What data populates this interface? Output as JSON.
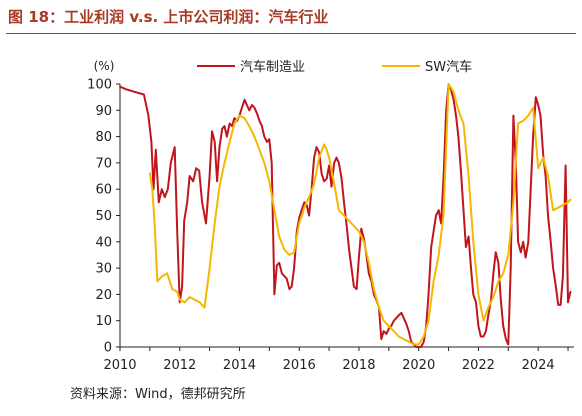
{
  "figure_title": "图 18：工业利润 v.s. 上市公司利润：汽车行业",
  "source_note": "资料来源：Wind，德邦研究所",
  "chart_data": {
    "type": "line",
    "ylabel": "(%)",
    "ylim": [
      0,
      100
    ],
    "yticks": [
      0,
      10,
      20,
      30,
      40,
      50,
      60,
      70,
      80,
      90,
      100
    ],
    "xlim": [
      2010,
      2025.2
    ],
    "xticks": [
      2010,
      2012,
      2014,
      2016,
      2018,
      2020,
      2022,
      2024
    ],
    "grid": false,
    "legend_position": "top",
    "series": [
      {
        "name": "汽车制造业",
        "color": "#c0151d",
        "points": [
          [
            2010.0,
            99
          ],
          [
            2010.2,
            98
          ],
          [
            2010.5,
            97
          ],
          [
            2010.8,
            96
          ],
          [
            2010.95,
            88
          ],
          [
            2011.05,
            78
          ],
          [
            2011.12,
            60
          ],
          [
            2011.2,
            75
          ],
          [
            2011.3,
            55
          ],
          [
            2011.4,
            60
          ],
          [
            2011.5,
            57
          ],
          [
            2011.6,
            60
          ],
          [
            2011.7,
            70
          ],
          [
            2011.83,
            76
          ],
          [
            2011.92,
            43
          ],
          [
            2012.0,
            17
          ],
          [
            2012.08,
            23
          ],
          [
            2012.15,
            48
          ],
          [
            2012.25,
            55
          ],
          [
            2012.33,
            65
          ],
          [
            2012.45,
            63
          ],
          [
            2012.55,
            68
          ],
          [
            2012.65,
            67
          ],
          [
            2012.75,
            55
          ],
          [
            2012.88,
            47
          ],
          [
            2013.0,
            65
          ],
          [
            2013.08,
            82
          ],
          [
            2013.17,
            78
          ],
          [
            2013.25,
            63
          ],
          [
            2013.33,
            76
          ],
          [
            2013.42,
            83
          ],
          [
            2013.5,
            84
          ],
          [
            2013.58,
            80
          ],
          [
            2013.67,
            85
          ],
          [
            2013.75,
            84
          ],
          [
            2013.83,
            87
          ],
          [
            2013.92,
            86
          ],
          [
            2014.0,
            88
          ],
          [
            2014.08,
            91
          ],
          [
            2014.17,
            94
          ],
          [
            2014.25,
            92
          ],
          [
            2014.33,
            90
          ],
          [
            2014.42,
            92
          ],
          [
            2014.5,
            91
          ],
          [
            2014.58,
            89
          ],
          [
            2014.67,
            86
          ],
          [
            2014.75,
            84
          ],
          [
            2014.83,
            80
          ],
          [
            2014.92,
            78
          ],
          [
            2015.0,
            79
          ],
          [
            2015.08,
            70
          ],
          [
            2015.17,
            20
          ],
          [
            2015.25,
            31
          ],
          [
            2015.33,
            32
          ],
          [
            2015.42,
            28
          ],
          [
            2015.5,
            27
          ],
          [
            2015.58,
            26
          ],
          [
            2015.67,
            22
          ],
          [
            2015.75,
            23
          ],
          [
            2015.83,
            30
          ],
          [
            2015.92,
            44
          ],
          [
            2016.0,
            49
          ],
          [
            2016.08,
            52
          ],
          [
            2016.17,
            55
          ],
          [
            2016.25,
            54
          ],
          [
            2016.33,
            50
          ],
          [
            2016.42,
            61
          ],
          [
            2016.5,
            72
          ],
          [
            2016.58,
            76
          ],
          [
            2016.67,
            74
          ],
          [
            2016.75,
            66
          ],
          [
            2016.83,
            63
          ],
          [
            2016.92,
            64
          ],
          [
            2017.0,
            69
          ],
          [
            2017.08,
            61
          ],
          [
            2017.17,
            70
          ],
          [
            2017.25,
            72
          ],
          [
            2017.33,
            70
          ],
          [
            2017.42,
            64
          ],
          [
            2017.5,
            55
          ],
          [
            2017.58,
            47
          ],
          [
            2017.67,
            37
          ],
          [
            2017.75,
            30
          ],
          [
            2017.83,
            23
          ],
          [
            2017.92,
            22
          ],
          [
            2018.0,
            34
          ],
          [
            2018.08,
            45
          ],
          [
            2018.17,
            41
          ],
          [
            2018.25,
            35
          ],
          [
            2018.33,
            28
          ],
          [
            2018.42,
            25
          ],
          [
            2018.5,
            20
          ],
          [
            2018.58,
            18
          ],
          [
            2018.67,
            15
          ],
          [
            2018.75,
            3
          ],
          [
            2018.83,
            6
          ],
          [
            2018.92,
            5
          ],
          [
            2019.0,
            7
          ],
          [
            2019.08,
            8
          ],
          [
            2019.17,
            10
          ],
          [
            2019.25,
            11
          ],
          [
            2019.33,
            12
          ],
          [
            2019.42,
            13
          ],
          [
            2019.5,
            11
          ],
          [
            2019.58,
            9
          ],
          [
            2019.67,
            6
          ],
          [
            2019.75,
            2
          ],
          [
            2019.83,
            1
          ],
          [
            2019.92,
            0
          ],
          [
            2020.0,
            0
          ],
          [
            2020.08,
            0
          ],
          [
            2020.17,
            2
          ],
          [
            2020.25,
            8
          ],
          [
            2020.33,
            20
          ],
          [
            2020.42,
            38
          ],
          [
            2020.5,
            44
          ],
          [
            2020.58,
            50
          ],
          [
            2020.67,
            52
          ],
          [
            2020.75,
            47
          ],
          [
            2020.83,
            64
          ],
          [
            2020.92,
            90
          ],
          [
            2021.0,
            100
          ],
          [
            2021.08,
            98
          ],
          [
            2021.17,
            94
          ],
          [
            2021.25,
            88
          ],
          [
            2021.33,
            80
          ],
          [
            2021.42,
            66
          ],
          [
            2021.5,
            52
          ],
          [
            2021.58,
            38
          ],
          [
            2021.67,
            42
          ],
          [
            2021.75,
            30
          ],
          [
            2021.83,
            20
          ],
          [
            2021.92,
            17
          ],
          [
            2022.0,
            8
          ],
          [
            2022.08,
            4
          ],
          [
            2022.17,
            4
          ],
          [
            2022.25,
            6
          ],
          [
            2022.33,
            12
          ],
          [
            2022.42,
            18
          ],
          [
            2022.5,
            28
          ],
          [
            2022.58,
            36
          ],
          [
            2022.67,
            32
          ],
          [
            2022.75,
            18
          ],
          [
            2022.83,
            8
          ],
          [
            2022.92,
            3
          ],
          [
            2023.0,
            1
          ],
          [
            2023.08,
            30
          ],
          [
            2023.17,
            88
          ],
          [
            2023.25,
            70
          ],
          [
            2023.33,
            40
          ],
          [
            2023.42,
            36
          ],
          [
            2023.5,
            40
          ],
          [
            2023.58,
            34
          ],
          [
            2023.67,
            40
          ],
          [
            2023.75,
            60
          ],
          [
            2023.83,
            80
          ],
          [
            2023.92,
            95
          ],
          [
            2024.0,
            92
          ],
          [
            2024.08,
            88
          ],
          [
            2024.17,
            73
          ],
          [
            2024.25,
            65
          ],
          [
            2024.33,
            50
          ],
          [
            2024.42,
            40
          ],
          [
            2024.5,
            30
          ],
          [
            2024.58,
            24
          ],
          [
            2024.67,
            16
          ],
          [
            2024.75,
            16
          ],
          [
            2024.83,
            27
          ],
          [
            2024.92,
            69
          ],
          [
            2025.0,
            17
          ],
          [
            2025.08,
            21
          ]
        ]
      },
      {
        "name": "SW汽车",
        "color": "#f5b800",
        "points": [
          [
            2011.0,
            66
          ],
          [
            2011.08,
            60
          ],
          [
            2011.17,
            45
          ],
          [
            2011.25,
            25
          ],
          [
            2011.42,
            27
          ],
          [
            2011.58,
            28
          ],
          [
            2011.75,
            22
          ],
          [
            2011.92,
            21
          ],
          [
            2012.0,
            18
          ],
          [
            2012.17,
            17
          ],
          [
            2012.33,
            19
          ],
          [
            2012.5,
            18
          ],
          [
            2012.67,
            17
          ],
          [
            2012.83,
            15
          ],
          [
            2013.0,
            30
          ],
          [
            2013.17,
            47
          ],
          [
            2013.33,
            61
          ],
          [
            2013.5,
            70
          ],
          [
            2013.67,
            78
          ],
          [
            2013.83,
            85
          ],
          [
            2014.0,
            88
          ],
          [
            2014.17,
            87
          ],
          [
            2014.33,
            84
          ],
          [
            2014.5,
            80
          ],
          [
            2014.67,
            75
          ],
          [
            2014.83,
            70
          ],
          [
            2015.0,
            63
          ],
          [
            2015.17,
            52
          ],
          [
            2015.33,
            42
          ],
          [
            2015.5,
            37
          ],
          [
            2015.67,
            35
          ],
          [
            2015.83,
            36
          ],
          [
            2016.0,
            47
          ],
          [
            2016.17,
            53
          ],
          [
            2016.33,
            57
          ],
          [
            2016.5,
            62
          ],
          [
            2016.67,
            72
          ],
          [
            2016.83,
            77
          ],
          [
            2016.92,
            75
          ],
          [
            2017.0,
            72
          ],
          [
            2017.17,
            62
          ],
          [
            2017.33,
            52
          ],
          [
            2017.5,
            50
          ],
          [
            2017.67,
            48
          ],
          [
            2017.83,
            46
          ],
          [
            2018.0,
            44
          ],
          [
            2018.17,
            40
          ],
          [
            2018.33,
            32
          ],
          [
            2018.5,
            22
          ],
          [
            2018.67,
            15
          ],
          [
            2018.83,
            10
          ],
          [
            2019.0,
            8
          ],
          [
            2019.17,
            6
          ],
          [
            2019.33,
            4
          ],
          [
            2019.5,
            3
          ],
          [
            2019.67,
            2
          ],
          [
            2019.83,
            1
          ],
          [
            2020.0,
            1
          ],
          [
            2020.17,
            4
          ],
          [
            2020.33,
            10
          ],
          [
            2020.5,
            25
          ],
          [
            2020.67,
            35
          ],
          [
            2020.83,
            50
          ],
          [
            2021.0,
            100
          ],
          [
            2021.17,
            97
          ],
          [
            2021.33,
            90
          ],
          [
            2021.5,
            85
          ],
          [
            2021.67,
            65
          ],
          [
            2021.83,
            40
          ],
          [
            2022.0,
            20
          ],
          [
            2022.17,
            10
          ],
          [
            2022.33,
            15
          ],
          [
            2022.5,
            19
          ],
          [
            2022.67,
            25
          ],
          [
            2022.83,
            28
          ],
          [
            2023.0,
            35
          ],
          [
            2023.17,
            55
          ],
          [
            2023.33,
            85
          ],
          [
            2023.5,
            86
          ],
          [
            2023.67,
            88
          ],
          [
            2023.83,
            91
          ],
          [
            2024.0,
            68
          ],
          [
            2024.17,
            72
          ],
          [
            2024.33,
            65
          ],
          [
            2024.5,
            52
          ],
          [
            2024.67,
            53
          ],
          [
            2024.83,
            54
          ],
          [
            2025.0,
            55
          ],
          [
            2025.08,
            56
          ]
        ]
      }
    ]
  }
}
